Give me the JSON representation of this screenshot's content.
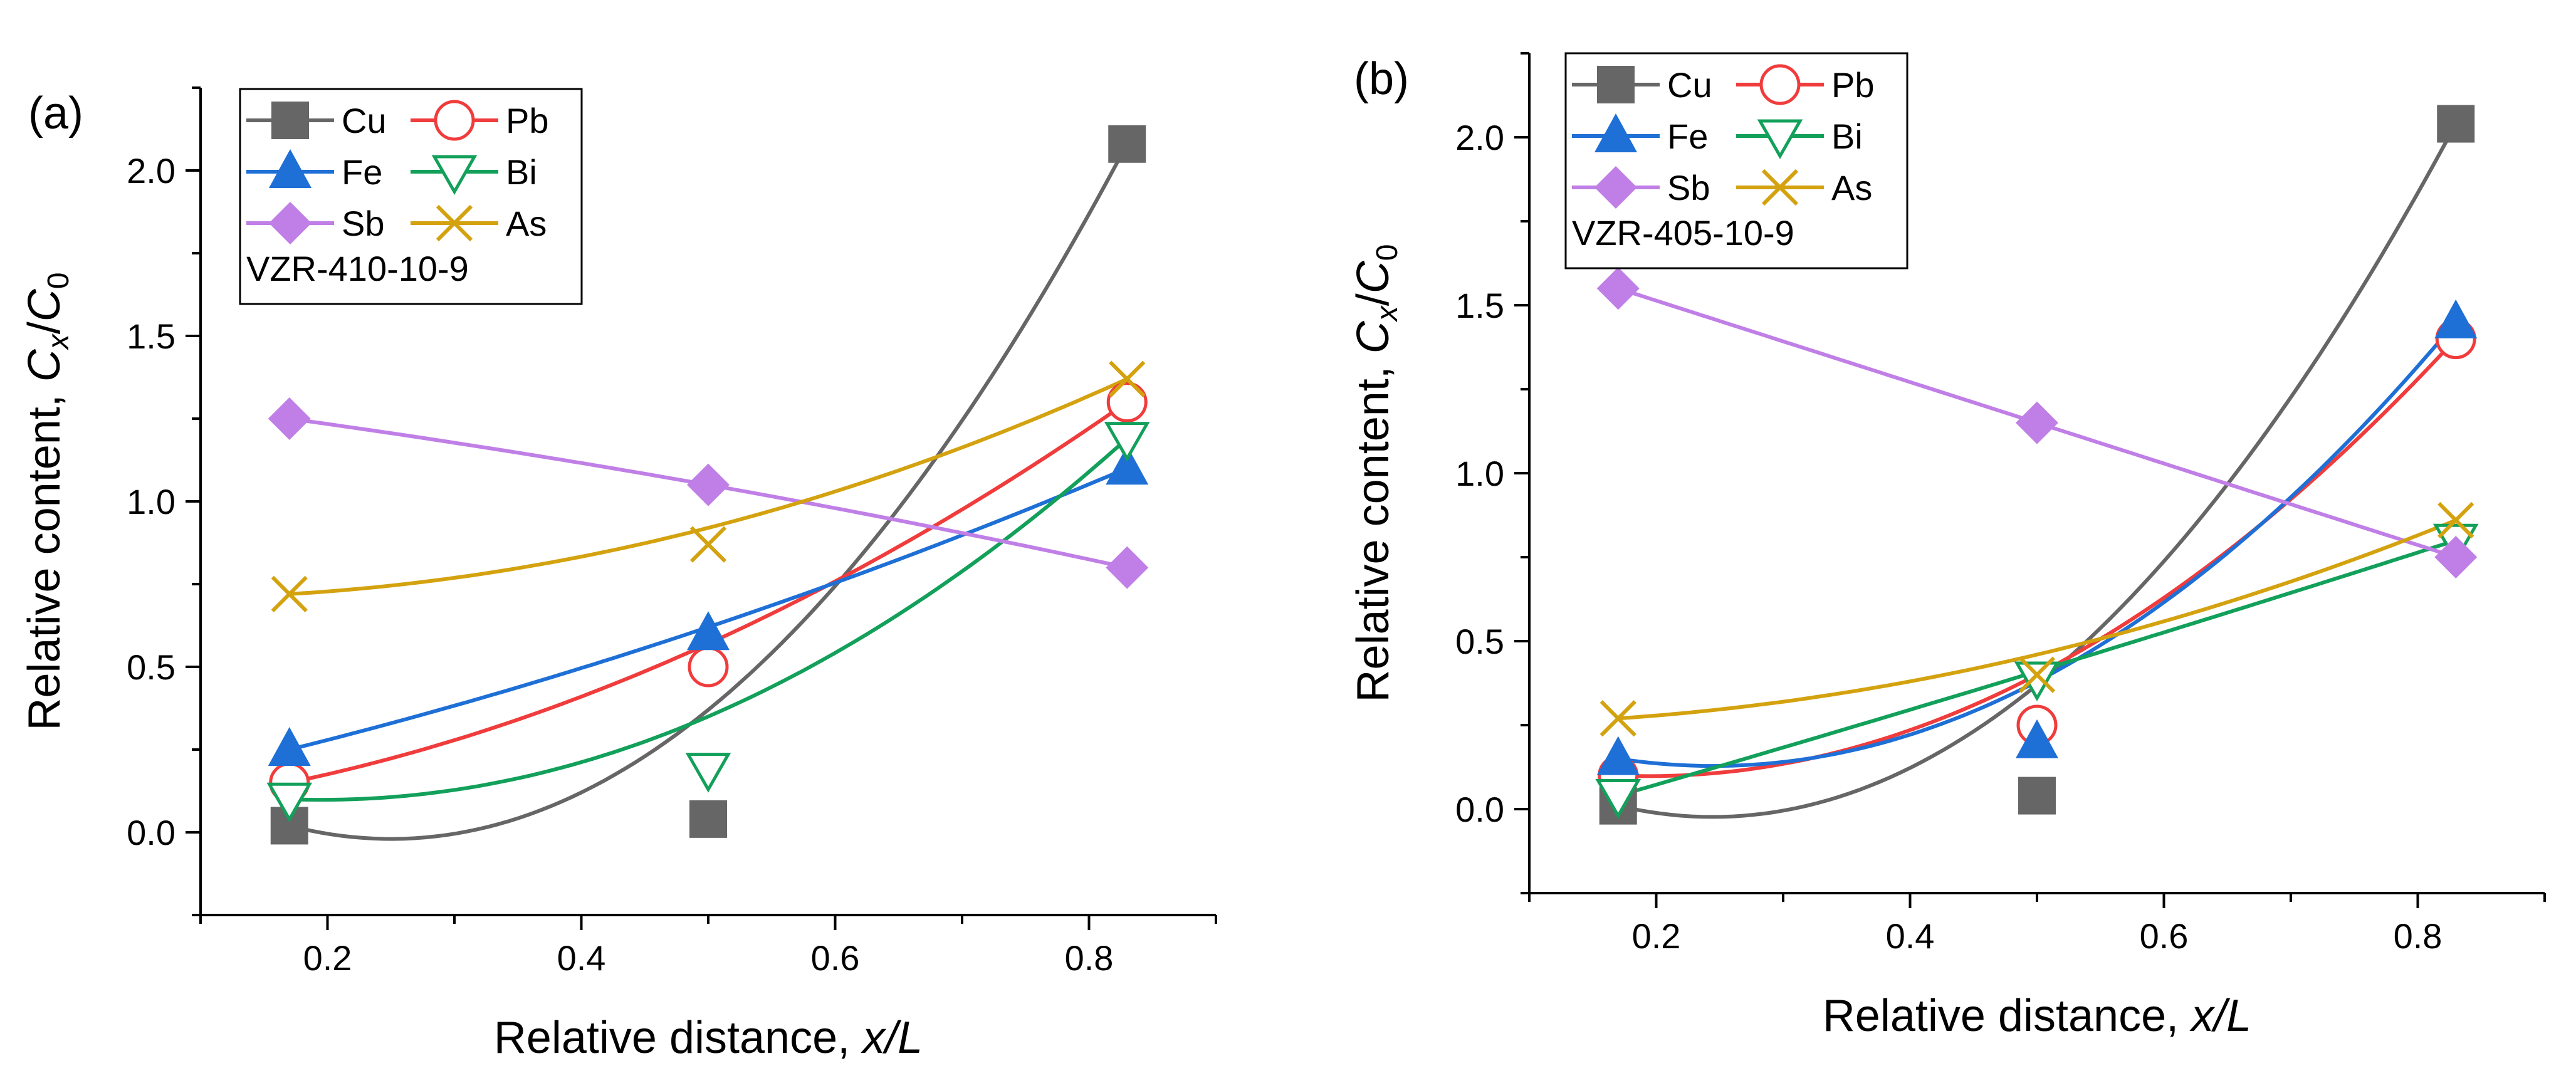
{
  "colors": {
    "Cu": "#666666",
    "Pb": "#f03c3c",
    "Fe": "#1e6fd6",
    "Bi": "#12a05a",
    "Sb": "#c07fe6",
    "As": "#d4a20f"
  },
  "markers": {
    "Cu": "filled-square",
    "Pb": "open-circle",
    "Fe": "filled-up-triangle",
    "Bi": "open-down-triangle",
    "Sb": "filled-diamond",
    "As": "cross-x"
  },
  "chart_data": [
    {
      "type": "scatter",
      "panel_label": "(a)",
      "sample": "VZR-410-10-9",
      "xlabel": "Relative distance, ",
      "xlabel_italic": "x/L",
      "ylabel": "Relative content, ",
      "ylabel_italic_C": "C",
      "ylabel_sub_x": "x",
      "ylabel_slash": "/",
      "ylabel_sub_0": "0",
      "xlim": [
        0.1,
        0.9
      ],
      "ylim": [
        -0.25,
        2.25
      ],
      "xticks": [
        0.2,
        0.4,
        0.6,
        0.8
      ],
      "xtick_labels": [
        "0.2",
        "0.4",
        "0.6",
        "0.8"
      ],
      "yticks": [
        0.0,
        0.5,
        1.0,
        1.5,
        2.0
      ],
      "ytick_labels": [
        "0.0",
        "0.5",
        "1.0",
        "1.5",
        "2.0"
      ],
      "legend_placement": "top-left",
      "series": [
        {
          "name": "Cu",
          "x": [
            0.17,
            0.5,
            0.83
          ],
          "y": [
            0.02,
            0.04,
            2.08
          ],
          "fit": [
            0.02,
            0.37,
            2.08
          ]
        },
        {
          "name": "Pb",
          "x": [
            0.17,
            0.5,
            0.83
          ],
          "y": [
            0.15,
            0.5,
            1.3
          ],
          "fit": [
            0.15,
            0.57,
            1.3
          ]
        },
        {
          "name": "Fe",
          "x": [
            0.17,
            0.5,
            0.83
          ],
          "y": [
            0.25,
            0.6,
            1.1
          ],
          "fit": [
            0.25,
            0.62,
            1.1
          ]
        },
        {
          "name": "Bi",
          "x": [
            0.17,
            0.5,
            0.83
          ],
          "y": [
            0.1,
            0.19,
            1.19
          ],
          "fit": [
            0.1,
            0.35,
            1.19
          ]
        },
        {
          "name": "Sb",
          "x": [
            0.17,
            0.5,
            0.83
          ],
          "y": [
            1.25,
            1.05,
            0.8
          ],
          "fit": [
            1.25,
            1.05,
            0.8
          ]
        },
        {
          "name": "As",
          "x": [
            0.17,
            0.5,
            0.83
          ],
          "y": [
            0.72,
            0.87,
            1.37
          ],
          "fit": [
            0.72,
            0.92,
            1.37
          ]
        }
      ]
    },
    {
      "type": "scatter",
      "panel_label": "(b)",
      "sample": "VZR-405-10-9",
      "xlabel": "Relative distance, ",
      "xlabel_italic": "x/L",
      "ylabel": "Relative content, ",
      "ylabel_italic_C": "C",
      "ylabel_sub_x": "x",
      "ylabel_slash": "/",
      "ylabel_sub_0": "0",
      "xlim": [
        0.1,
        0.9
      ],
      "ylim": [
        -0.25,
        2.25
      ],
      "xticks": [
        0.2,
        0.4,
        0.6,
        0.8
      ],
      "xtick_labels": [
        "0.2",
        "0.4",
        "0.6",
        "0.8"
      ],
      "yticks": [
        0.0,
        0.5,
        1.0,
        1.5,
        2.0
      ],
      "ytick_labels": [
        "0.0",
        "0.5",
        "1.0",
        "1.5",
        "2.0"
      ],
      "legend_placement": "top-left",
      "series": [
        {
          "name": "Cu",
          "x": [
            0.17,
            0.5,
            0.83
          ],
          "y": [
            0.01,
            0.04,
            2.04
          ],
          "fit": [
            0.01,
            0.37,
            2.04
          ]
        },
        {
          "name": "Pb",
          "x": [
            0.17,
            0.5,
            0.83
          ],
          "y": [
            0.1,
            0.25,
            1.4
          ],
          "fit": [
            0.1,
            0.4,
            1.4
          ]
        },
        {
          "name": "Fe",
          "x": [
            0.17,
            0.5,
            0.83
          ],
          "y": [
            0.15,
            0.2,
            1.45
          ],
          "fit": [
            0.15,
            0.38,
            1.45
          ]
        },
        {
          "name": "Bi",
          "x": [
            0.17,
            0.5,
            0.83
          ],
          "y": [
            0.04,
            0.39,
            0.8
          ],
          "fit": [
            0.04,
            0.41,
            0.8
          ]
        },
        {
          "name": "Sb",
          "x": [
            0.17,
            0.5,
            0.83
          ],
          "y": [
            1.55,
            1.15,
            0.75
          ],
          "fit": [
            1.55,
            1.15,
            0.75
          ]
        },
        {
          "name": "As",
          "x": [
            0.17,
            0.5,
            0.83
          ],
          "y": [
            0.27,
            0.4,
            0.86
          ],
          "fit": [
            0.27,
            0.46,
            0.86
          ]
        }
      ]
    }
  ]
}
